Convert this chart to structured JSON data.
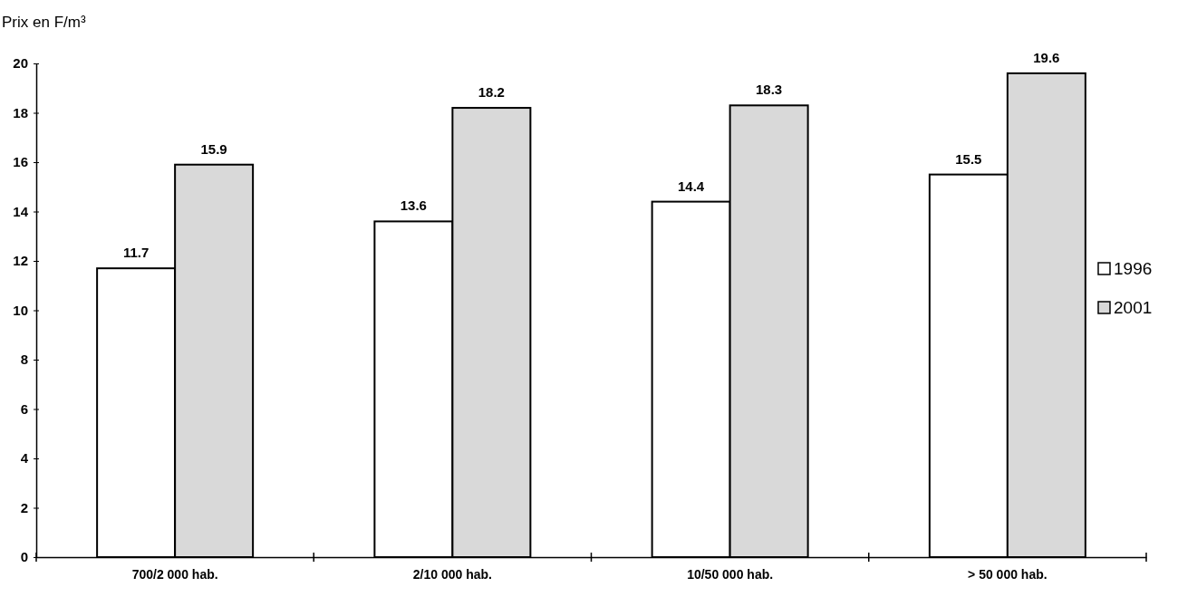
{
  "chart_data": {
    "type": "bar",
    "ylabel": "Prix en F/m³",
    "categories": [
      "700/2 000 hab.",
      "2/10 000 hab.",
      "10/50 000 hab.",
      "> 50 000 hab."
    ],
    "series": [
      {
        "name": "1996",
        "color": "#ffffff",
        "values": [
          11.7,
          13.6,
          14.4,
          15.5
        ]
      },
      {
        "name": "2001",
        "color": "#d9d9d9",
        "values": [
          15.9,
          18.2,
          18.3,
          19.6
        ]
      }
    ],
    "ylim": [
      0,
      20
    ],
    "yticks": [
      0,
      2,
      4,
      6,
      8,
      10,
      12,
      14,
      16,
      18,
      20
    ],
    "data_labels": true,
    "legend": "right",
    "grid": false
  }
}
